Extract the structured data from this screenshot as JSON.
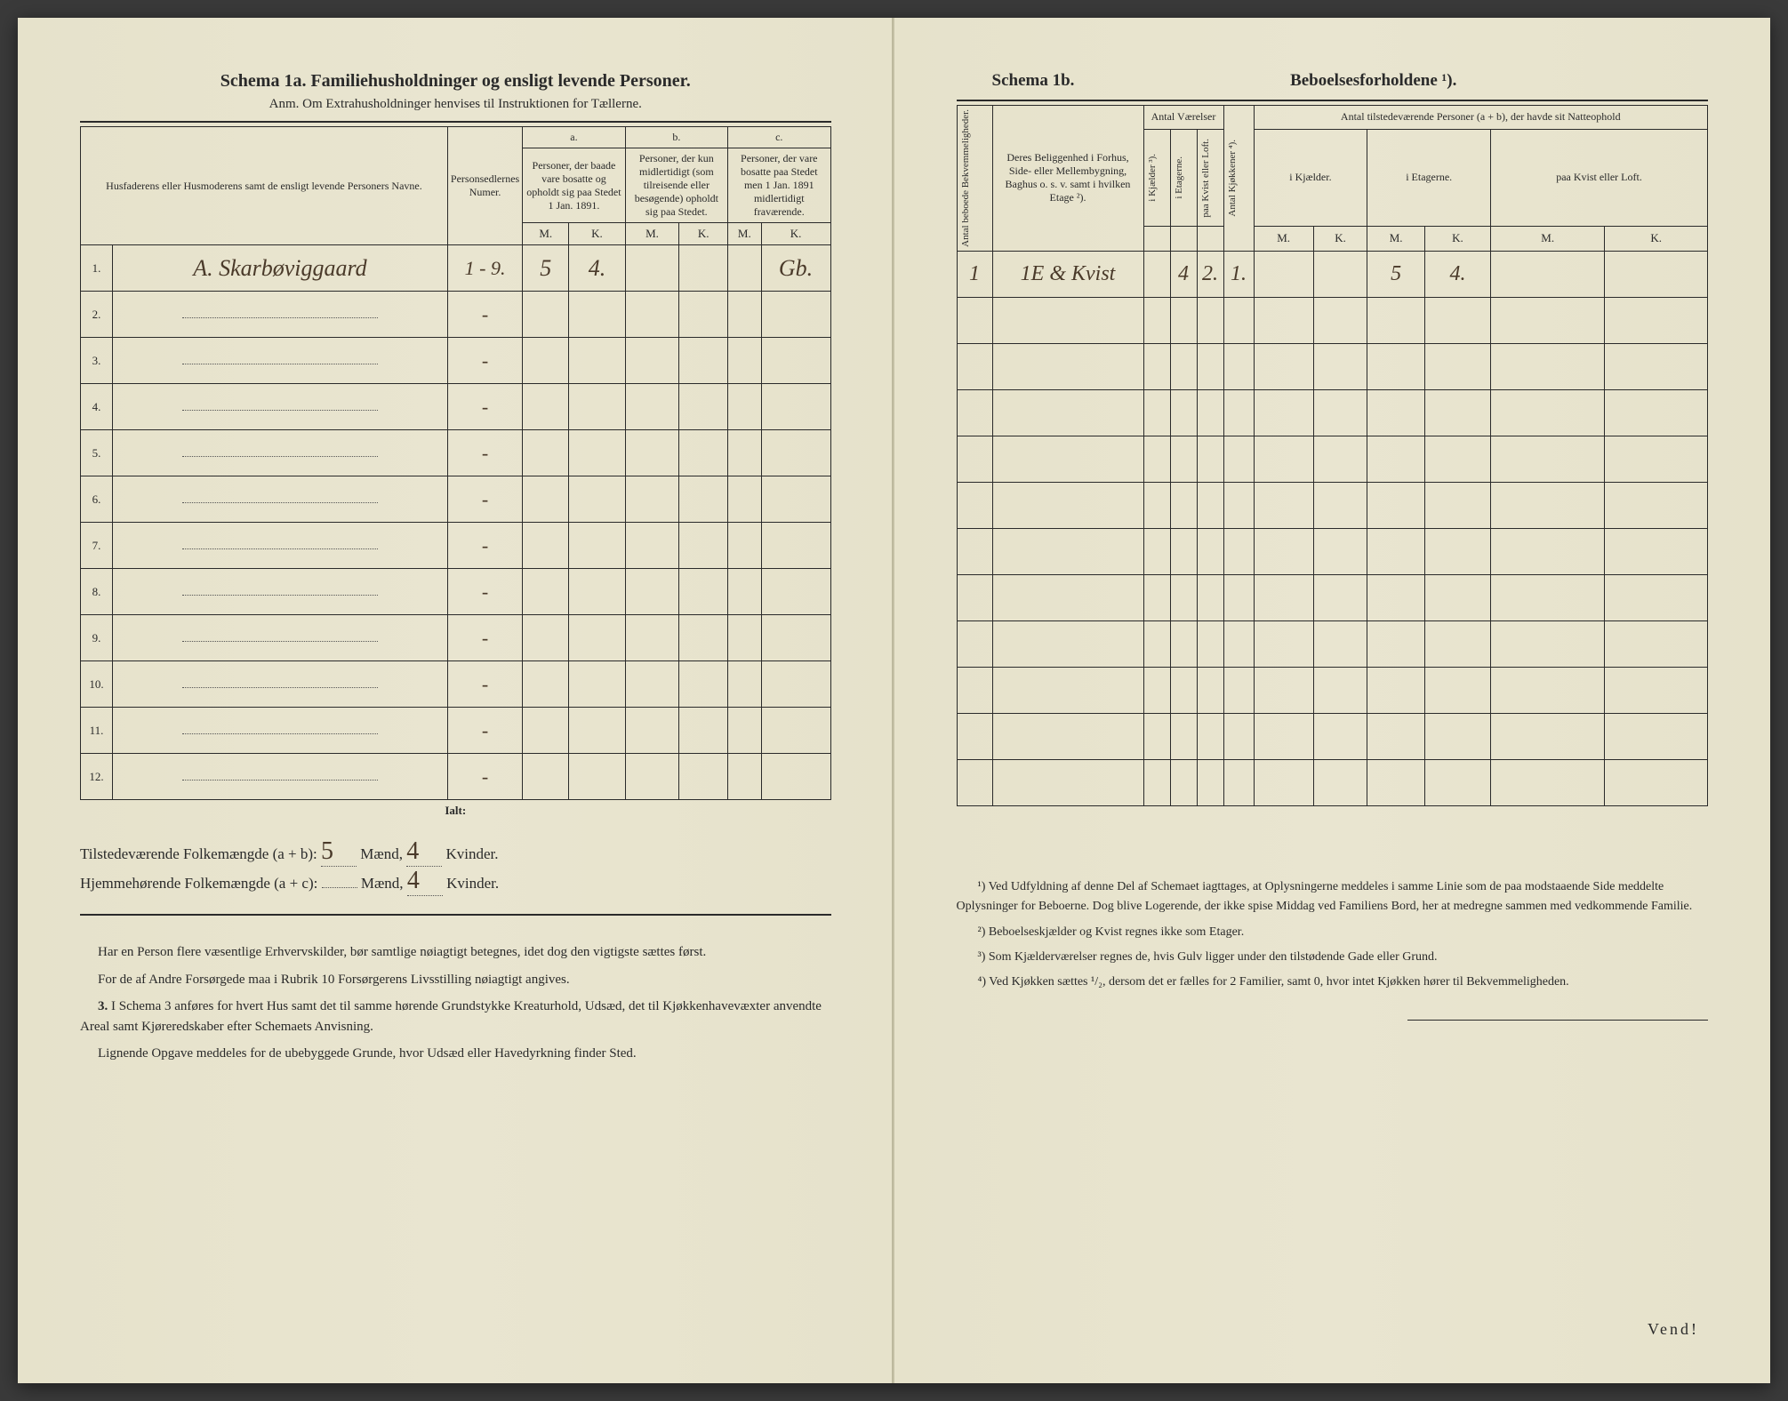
{
  "colors": {
    "paper": "#e8e4cf",
    "ink": "#2a2a2a",
    "handwriting": "#4a3a2a"
  },
  "left": {
    "title": "Schema 1a.   Familiehusholdninger og ensligt levende Personer.",
    "subtitle": "Anm. Om Extrahusholdninger henvises til Instruktionen for Tællerne.",
    "headers": {
      "col1": "Husfaderens eller Husmoderens samt de ensligt levende Personers Navne.",
      "col2": "Personsedlernes Numer.",
      "groupA": "a.",
      "groupA_text": "Personer, der baade vare bosatte og opholdt sig paa Stedet 1 Jan. 1891.",
      "groupB": "b.",
      "groupB_text": "Personer, der kun midlertidigt (som tilreisende eller besøgende) opholdt sig paa Stedet.",
      "groupC": "c.",
      "groupC_text": "Personer, der vare bosatte paa Stedet men 1 Jan. 1891 midlertidigt fraværende.",
      "m": "M.",
      "k": "K."
    },
    "rows": [
      {
        "num": "1.",
        "name": "A. Skarbøviggaard",
        "sedler": "1 - 9.",
        "aM": "5",
        "aK": "4.",
        "bM": "",
        "bK": "",
        "cM": "",
        "cK": "Gb."
      },
      {
        "num": "2.",
        "name": "",
        "sedler": "-"
      },
      {
        "num": "3.",
        "name": "",
        "sedler": "-"
      },
      {
        "num": "4.",
        "name": "",
        "sedler": "-"
      },
      {
        "num": "5.",
        "name": "",
        "sedler": "-"
      },
      {
        "num": "6.",
        "name": "",
        "sedler": "-"
      },
      {
        "num": "7.",
        "name": "",
        "sedler": "-"
      },
      {
        "num": "8.",
        "name": "",
        "sedler": "-"
      },
      {
        "num": "9.",
        "name": "",
        "sedler": "-"
      },
      {
        "num": "10.",
        "name": "",
        "sedler": "-"
      },
      {
        "num": "11.",
        "name": "",
        "sedler": "-"
      },
      {
        "num": "12.",
        "name": "",
        "sedler": "-"
      }
    ],
    "ialt": "Ialt:",
    "summary1_label": "Tilstedeværende Folkemængde (a + b): ",
    "summary1_m": "5",
    "summary1_mid": " Mænd, ",
    "summary1_k": "4",
    "summary1_end": " Kvinder.",
    "summary2_label": "Hjemmehørende Folkemængde (a + c): ",
    "summary2_m": "",
    "summary2_mid": " Mænd, ",
    "summary2_k": "4",
    "summary2_end": " Kvinder.",
    "notes_p1": "Har en Person flere væsentlige Erhvervskilder, bør samtlige nøiagtigt betegnes, idet dog den vigtigste sættes først.",
    "notes_p2": "For de af Andre Forsørgede maa i Rubrik 10 Forsørgerens Livsstilling nøiagtigt angives.",
    "notes_p3_label": "3.",
    "notes_p3": "I Schema 3 anføres for hvert Hus samt det til samme hørende Grundstykke Kreaturhold, Udsæd, det til Kjøkkenhavevæxter anvendte Areal samt Kjøreredskaber efter Schemaets Anvisning.",
    "notes_p4": "Lignende Opgave meddeles for de ubebyggede Grunde, hvor Udsæd eller Havedyrkning finder Sted."
  },
  "right": {
    "title_left": "Schema 1b.",
    "title_right": "Beboelsesforholdene ¹).",
    "headers": {
      "col1": "Antal beboede Bekvemmeligheder.",
      "col2": "Deres Beliggenhed i Forhus, Side- eller Mellembygning, Baghus o. s. v. samt i hvilken Etage ²).",
      "rooms_group": "Antal Værelser",
      "rooms_a": "i Kjælder ³).",
      "rooms_b": "i Etagerne.",
      "rooms_c": "paa Kvist eller Loft.",
      "col_kitchen": "Antal Kjøkkener ⁴).",
      "pers_group": "Antal tilstedeværende Personer (a + b), der havde sit Natteophold",
      "pers_a": "i Kjælder.",
      "pers_b": "i Etagerne.",
      "pers_c": "paa Kvist eller Loft.",
      "m": "M.",
      "k": "K."
    },
    "rows": [
      {
        "bekv": "1",
        "belig": "1E & Kvist",
        "vK": "",
        "vE": "4",
        "vKv": "2.",
        "kjk": "1.",
        "pKM": "",
        "pKK": "",
        "pEM": "5",
        "pEK": "4.",
        "pKvM": "",
        "pKvK": ""
      }
    ],
    "empty_rows": 11,
    "footnotes": {
      "f1": "¹) Ved Udfyldning af denne Del af Schemaet iagttages, at Oplysningerne meddeles i samme Linie som de paa modstaaende Side meddelte Oplysninger for Beboerne. Dog blive Logerende, der ikke spise Middag ved Familiens Bord, her at medregne sammen med vedkommende Familie.",
      "f2": "²) Beboelseskjælder og Kvist regnes ikke som Etager.",
      "f3": "³) Som Kjælderværelser regnes de, hvis Gulv ligger under den tilstødende Gade eller Grund.",
      "f4": "⁴) Ved Kjøkken sættes ¹/₂, dersom det er fælles for 2 Familier, samt 0, hvor intet Kjøkken hører til Bekvemmeligheden."
    },
    "vend": "Vend!"
  }
}
